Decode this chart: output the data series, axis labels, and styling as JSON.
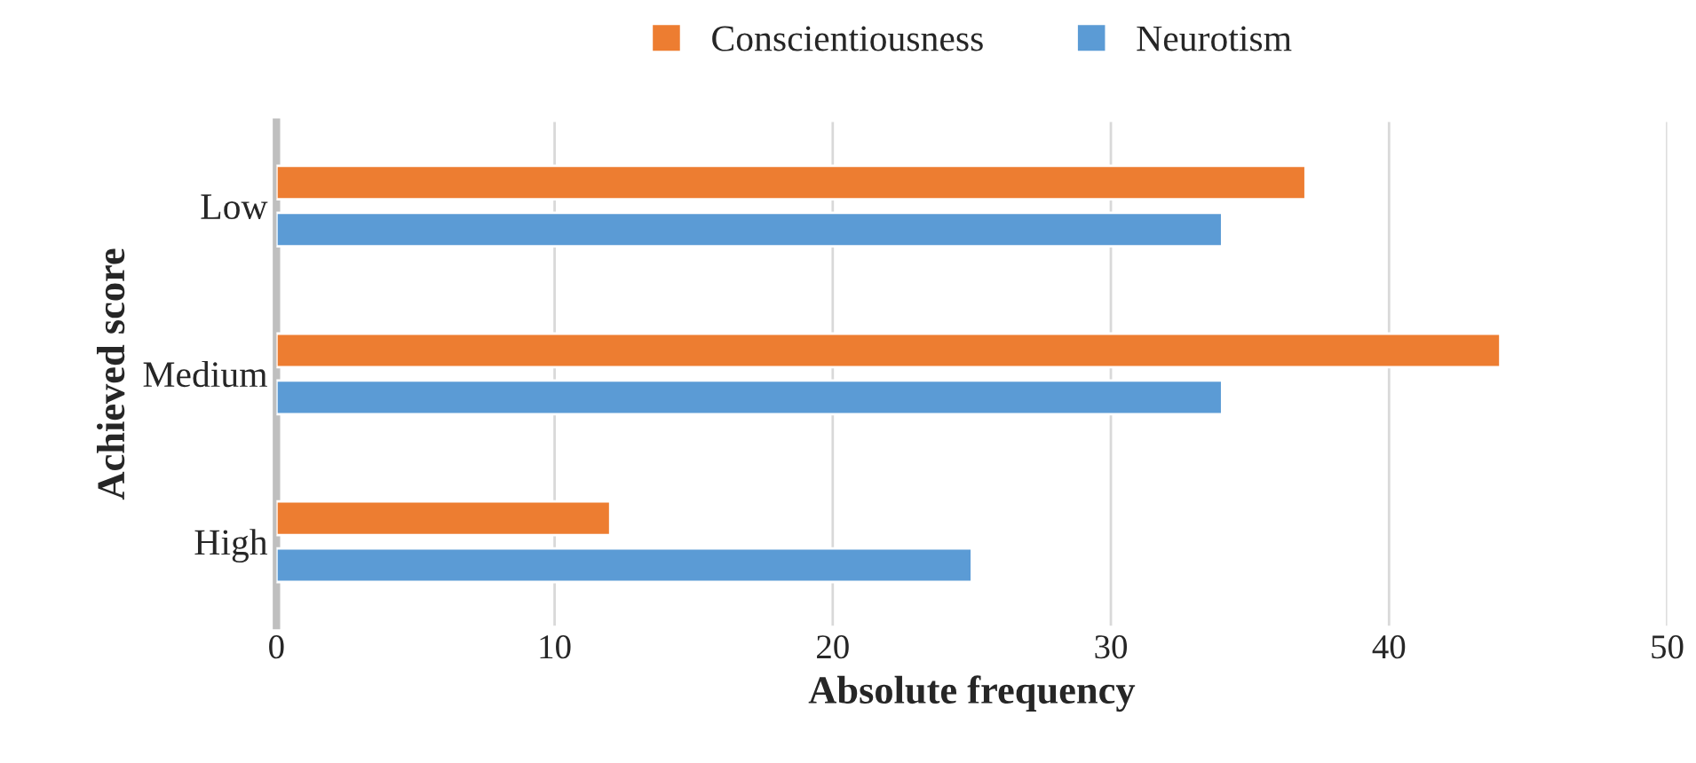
{
  "chart_data": {
    "type": "bar",
    "orientation": "horizontal",
    "xlabel": "Absolute frequency",
    "ylabel": "Achieved score",
    "categories": [
      "Low",
      "Medium",
      "High"
    ],
    "series": [
      {
        "name": "Conscientiousness",
        "color": "#ed7d31",
        "values": [
          37,
          44,
          12
        ]
      },
      {
        "name": "Neurotism",
        "color": "#5b9bd5",
        "values": [
          34,
          34,
          25
        ]
      }
    ],
    "xlim": [
      0,
      50
    ],
    "xticks": [
      0,
      10,
      20,
      30,
      40,
      50
    ],
    "grid": "x",
    "legend": "top"
  }
}
